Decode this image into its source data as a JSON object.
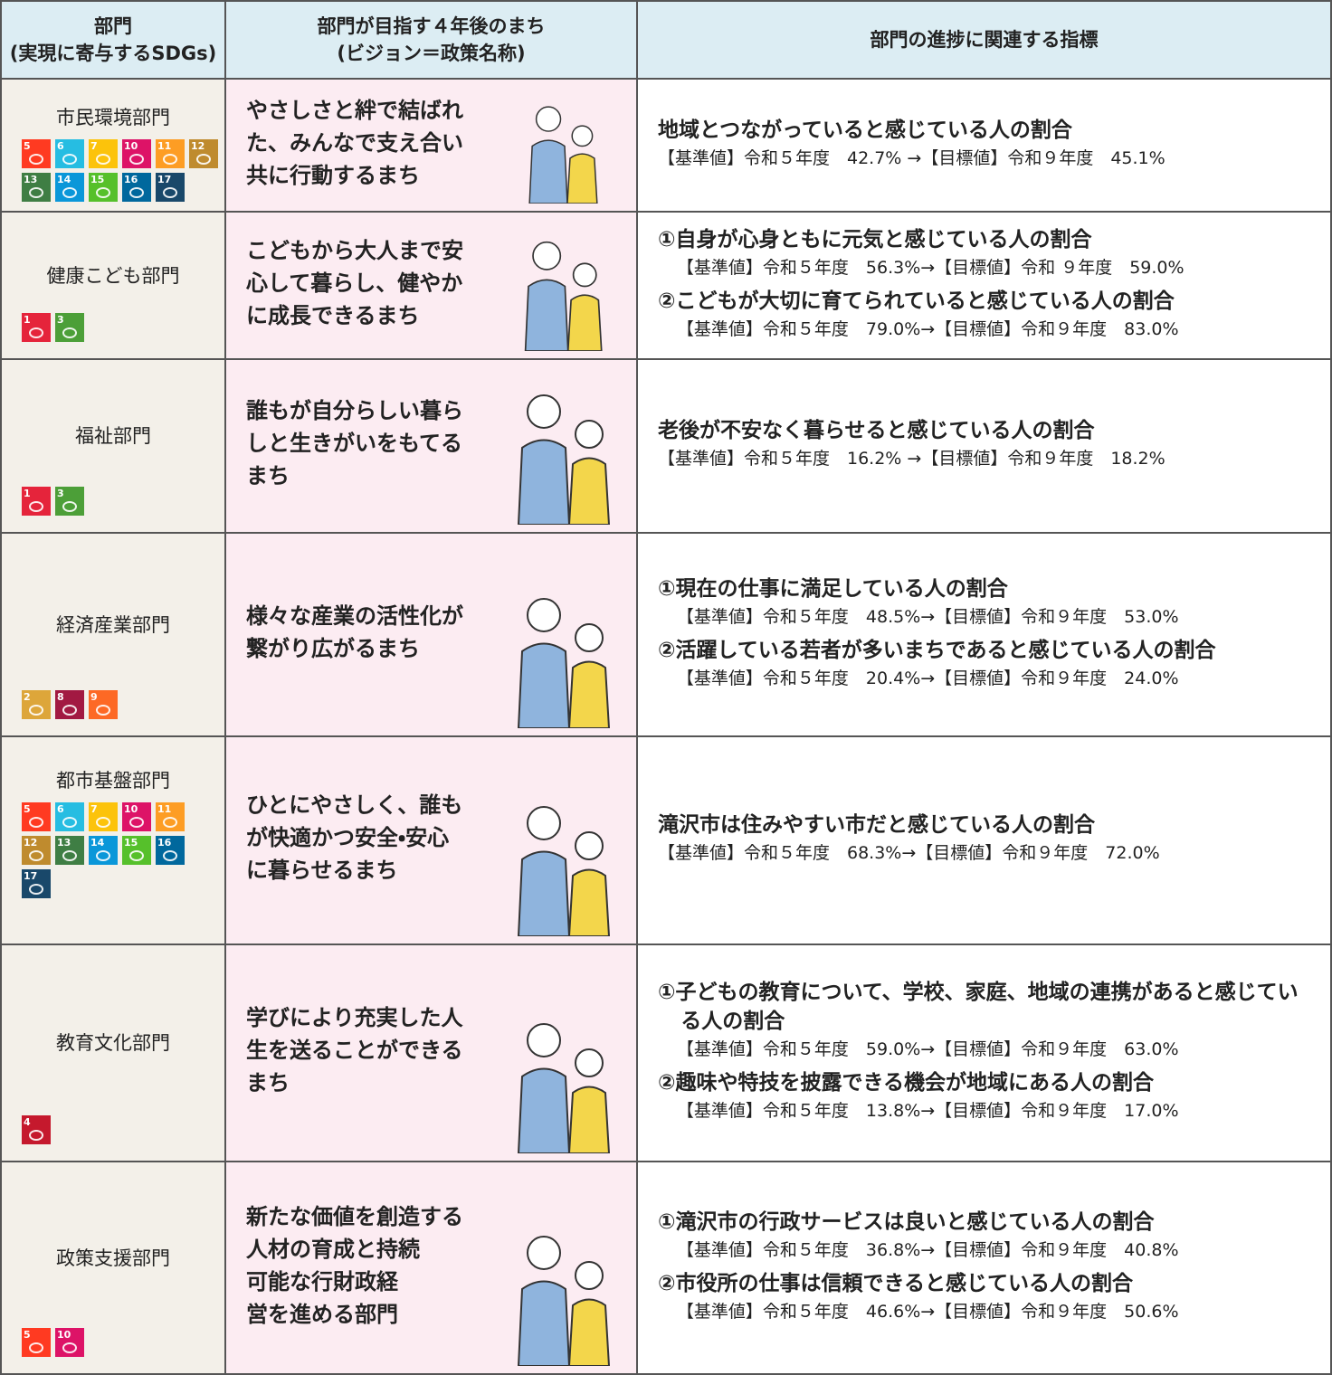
{
  "header": {
    "col1": [
      "部門",
      "(実現に寄与するSDGs)"
    ],
    "col2": [
      "部門が目指す４年後のまち",
      "(ビジョン＝政策名称)"
    ],
    "col3": [
      "部門の進捗に関連する指標"
    ]
  },
  "rows": [
    {
      "department": "市民環境部門",
      "sdgs": [
        5,
        6,
        7,
        10,
        11,
        12,
        13,
        14,
        15,
        16,
        17
      ],
      "vision": [
        "やさしさと絆で結ばれ",
        "た、みんなで支え合い",
        "共に行動するまち"
      ],
      "indicators": [
        {
          "title": "地域とつながっていると感じている人の割合",
          "detail": "【基準値】令和５年度　42.7% →【目標値】令和９年度　45.1%"
        }
      ]
    },
    {
      "department": "健康こども部門",
      "sdgs": [
        1,
        3
      ],
      "vision": [
        "こどもから大人まで安",
        "心して暮らし、健やか",
        "に成長できるまち"
      ],
      "indicators": [
        {
          "title": "①自身が心身ともに元気と感じている人の割合",
          "detail": "【基準値】令和５年度　56.3%→【目標値】令和 ９年度　59.0%"
        },
        {
          "title": "②こどもが大切に育てられていると感じている人の割合",
          "detail": "【基準値】令和５年度　79.0%→【目標値】令和９年度　83.0%"
        }
      ]
    },
    {
      "department": "福祉部門",
      "sdgs": [
        1,
        3
      ],
      "vision": [
        "誰もが自分らしい暮ら",
        "しと生きがいをもてる",
        "まち"
      ],
      "indicators": [
        {
          "title": "老後が不安なく暮らせると感じている人の割合",
          "detail": "【基準値】令和５年度　16.2% →【目標値】令和９年度　18.2%"
        }
      ]
    },
    {
      "department": "経済産業部門",
      "sdgs": [
        2,
        8,
        9
      ],
      "vision": [
        "様々な産業の活性化が",
        "繋がり広がるまち"
      ],
      "indicators": [
        {
          "title": "①現在の仕事に満足している人の割合",
          "detail": "【基準値】令和５年度　48.5%→【目標値】令和９年度　53.0%"
        },
        {
          "title": "②活躍している若者が多いまちであると感じている人の割合",
          "detail": "【基準値】令和５年度　20.4%→【目標値】令和９年度　24.0%"
        }
      ]
    },
    {
      "department": "都市基盤部門",
      "sdgs": [
        5,
        6,
        7,
        10,
        11,
        12,
        13,
        14,
        15,
        16,
        17
      ],
      "vision": [
        "ひとにやさしく、誰も",
        "が快適かつ安全・安心",
        "に暮らせるまち"
      ],
      "indicators": [
        {
          "title": "滝沢市は住みやすい市だと感じている人の割合",
          "detail": "【基準値】令和５年度　68.3%→【目標値】令和９年度　72.0%"
        }
      ]
    },
    {
      "department": "教育文化部門",
      "sdgs": [
        4
      ],
      "vision": [
        "学びにより充実した人",
        "生を送ることができる",
        "まち"
      ],
      "indicators": [
        {
          "title": "①子どもの教育について、学校、家庭、地域の連携があると感じている人の割合",
          "detail": "【基準値】令和５年度　59.0%→【目標値】令和９年度　63.0%"
        },
        {
          "title": "②趣味や特技を披露できる機会が地域にある人の割合",
          "detail": "【基準値】令和５年度　13.8%→【目標値】令和９年度　17.0%"
        }
      ]
    },
    {
      "department": "政策支援部門",
      "sdgs": [
        5,
        10
      ],
      "vision": [
        "新たな価値を創造する",
        "人材の育成と持続",
        "可能な行財政経",
        "営を進める部門"
      ],
      "indicators": [
        {
          "title": "①滝沢市の行政サービスは良いと感じている人の割合",
          "detail": "【基準値】令和５年度　36.8%→【目標値】令和９年度　40.8%"
        },
        {
          "title": "②市役所の仕事は信頼できると感じている人の割合",
          "detail": "【基準値】令和５年度　46.6%→【目標値】令和９年度　50.6%"
        }
      ]
    }
  ]
}
